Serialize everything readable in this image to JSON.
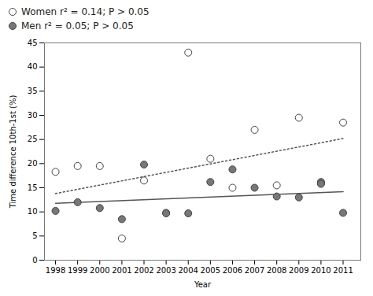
{
  "chart_data": {
    "type": "scatter",
    "xlabel": "Year",
    "ylabel": "Time difference 10th-1st (%)",
    "series": [
      {
        "name": "Women r² = 0.14; P > 0.05",
        "type": "scatter",
        "marker": "circle",
        "color": "#ffffff",
        "x": [
          1998,
          1999,
          2000,
          2001,
          2002,
          2003,
          2004,
          2005,
          2006,
          2007,
          2008,
          2009,
          2010,
          2011
        ],
        "values": [
          18.3,
          19.5,
          19.5,
          4.5,
          16.5,
          9.8,
          43.0,
          21.0,
          15.0,
          27.0,
          15.5,
          29.5,
          16.0,
          28.5
        ]
      },
      {
        "name": "Men r² = 0.05; P > 0.05",
        "type": "scatter",
        "marker": "circle",
        "color": "#777777",
        "x": [
          1998,
          1999,
          2000,
          2001,
          2002,
          2003,
          2004,
          2005,
          2006,
          2007,
          2008,
          2009,
          2010,
          2010,
          2011
        ],
        "values": [
          10.2,
          12.0,
          10.8,
          8.5,
          19.8,
          9.7,
          9.7,
          16.2,
          18.8,
          15.0,
          13.2,
          13.0,
          16.2,
          15.8,
          9.8
        ]
      },
      {
        "type": "line",
        "line_style": "dotted",
        "color": "#555555",
        "x": [
          1998,
          2011
        ],
        "values": [
          13.8,
          25.2
        ]
      },
      {
        "type": "line",
        "line_style": "solid",
        "color": "#555555",
        "x": [
          1998,
          2011
        ],
        "values": [
          11.8,
          14.2
        ]
      }
    ],
    "xlim": [
      1997.5,
      2011.8
    ],
    "xticks": [
      1998,
      1999,
      2000,
      2001,
      2002,
      2003,
      2004,
      2005,
      2006,
      2007,
      2008,
      2009,
      2010,
      2011
    ],
    "ylim": [
      0,
      45
    ],
    "yticks": [
      0,
      5,
      10,
      15,
      20,
      25,
      30,
      35,
      40,
      45
    ],
    "grid": false,
    "legend": "top"
  }
}
